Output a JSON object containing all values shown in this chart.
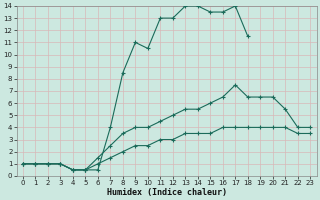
{
  "xlabel": "Humidex (Indice chaleur)",
  "xlim": [
    -0.5,
    23.5
  ],
  "ylim": [
    0,
    14
  ],
  "xticks": [
    0,
    1,
    2,
    3,
    4,
    5,
    6,
    7,
    8,
    9,
    10,
    11,
    12,
    13,
    14,
    15,
    16,
    17,
    18,
    19,
    20,
    21,
    22,
    23
  ],
  "yticks": [
    0,
    1,
    2,
    3,
    4,
    5,
    6,
    7,
    8,
    9,
    10,
    11,
    12,
    13,
    14
  ],
  "bg_color": "#cce8e0",
  "plot_bg": "#cce8e0",
  "line_color": "#1a6b5a",
  "grid_color": "#b0d8d0",
  "line1_x": [
    0,
    1,
    2,
    3,
    4,
    5,
    6,
    7,
    8,
    9,
    10,
    11,
    12,
    13,
    14,
    15,
    16,
    17,
    18
  ],
  "line1_y": [
    1,
    1,
    1,
    1,
    0.5,
    0.5,
    0.5,
    4,
    8.5,
    11,
    10.5,
    13,
    13,
    14,
    14,
    13.5,
    13.5,
    14,
    11.5
  ],
  "line2_x": [
    0,
    1,
    2,
    3,
    4,
    5,
    6,
    7,
    8,
    9,
    10,
    11,
    12,
    13,
    14,
    15,
    16,
    17,
    18,
    19,
    20,
    21,
    22,
    23
  ],
  "line2_y": [
    1,
    1,
    1,
    1,
    0.5,
    0.5,
    1.5,
    2.5,
    3.5,
    4,
    4,
    4.5,
    5,
    5.5,
    5.5,
    6,
    6.5,
    7.5,
    6.5,
    6.5,
    6.5,
    5.5,
    4,
    4
  ],
  "line3_x": [
    0,
    1,
    2,
    3,
    4,
    5,
    6,
    7,
    8,
    9,
    10,
    11,
    12,
    13,
    14,
    15,
    16,
    17,
    18,
    19,
    20,
    21,
    22,
    23
  ],
  "line3_y": [
    1,
    1,
    1,
    1,
    0.5,
    0.5,
    1,
    1.5,
    2,
    2.5,
    2.5,
    3,
    3,
    3.5,
    3.5,
    3.5,
    4,
    4,
    4,
    4,
    4,
    4,
    3.5,
    3.5
  ]
}
